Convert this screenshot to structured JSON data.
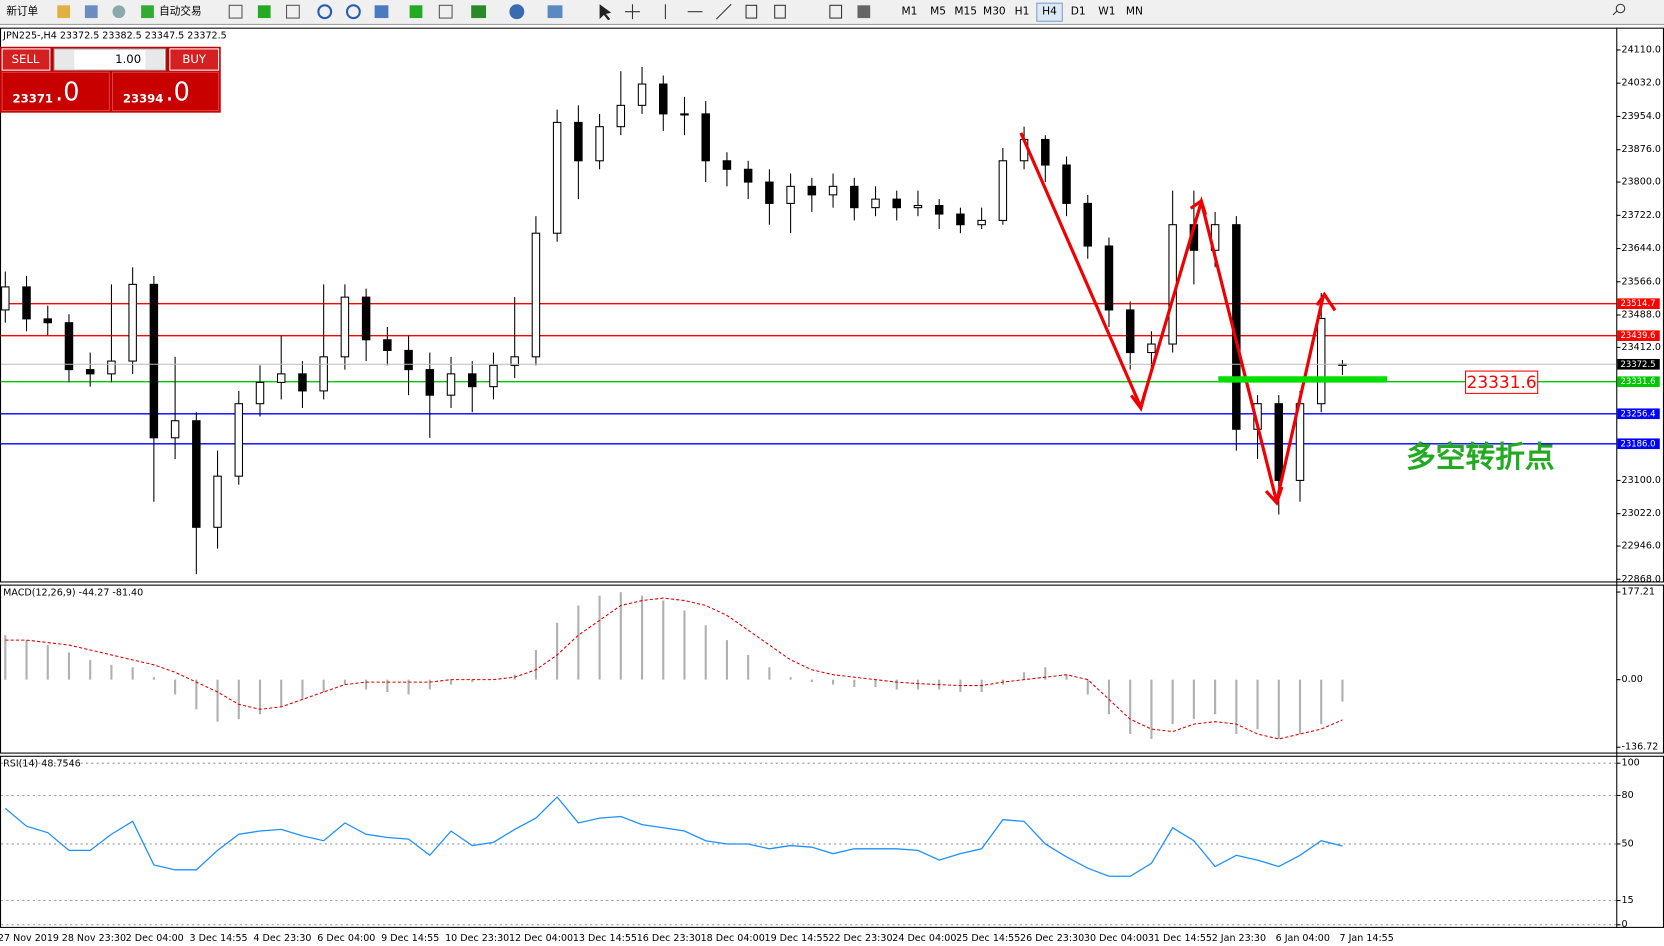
{
  "toolbar": {
    "new_order": "新订单",
    "auto_trading": "自动交易",
    "timeframes": [
      "M1",
      "M5",
      "M15",
      "M30",
      "H1",
      "H4",
      "D1",
      "W1",
      "MN"
    ]
  },
  "trade_panel": {
    "sell": "SELL",
    "buy": "BUY",
    "lots": "1.00",
    "sell_price": "23371",
    "sell_decimal": ".0",
    "buy_price": "23394",
    "buy_decimal": ".0"
  },
  "annotation": "多空转折点",
  "chart_data": [
    {
      "type": "candlestick",
      "title": "JPN225-,H4 23372.5 23382.5 23347.5 23372.5",
      "open": [
        23500,
        23554,
        23479,
        23470,
        23360,
        23350,
        23380,
        23560,
        23200,
        23240,
        22990,
        23110,
        23280,
        23330,
        23350,
        23310,
        23390,
        23530,
        23430,
        23405,
        23360,
        23300,
        23350,
        23320,
        23370,
        23390,
        23680,
        23940,
        23850,
        23930,
        23980,
        24030,
        23960,
        23960,
        23850,
        23830,
        23800,
        23750,
        23790,
        23770,
        23790,
        23740,
        23760,
        23740,
        23745,
        23725,
        23700,
        23710,
        23850,
        23900,
        23840,
        23750,
        23650,
        23500,
        23400,
        23420,
        23700,
        23640,
        23700,
        23220,
        23280,
        23100,
        23280,
        23372.5
      ],
      "high": [
        23590,
        23580,
        23510,
        23490,
        23400,
        23560,
        23600,
        23580,
        23390,
        23260,
        23170,
        23310,
        23370,
        23440,
        23380,
        23560,
        23560,
        23550,
        23460,
        23440,
        23400,
        23390,
        23380,
        23400,
        23530,
        23720,
        23970,
        23980,
        23960,
        24060,
        24070,
        24050,
        24000,
        23990,
        23870,
        23850,
        23830,
        23820,
        23810,
        23820,
        23810,
        23790,
        23780,
        23780,
        23760,
        23740,
        23740,
        23880,
        23930,
        23910,
        23860,
        23770,
        23670,
        23520,
        23450,
        23780,
        23780,
        23730,
        23720,
        23300,
        23300,
        23310,
        23540,
        23382.5
      ],
      "low": [
        23470,
        23450,
        23440,
        23330,
        23320,
        23330,
        23350,
        23050,
        23150,
        22880,
        22940,
        23090,
        23250,
        23290,
        23270,
        23290,
        23360,
        23380,
        23370,
        23300,
        23200,
        23270,
        23260,
        23290,
        23340,
        23370,
        23660,
        23760,
        23830,
        23910,
        23960,
        23920,
        23910,
        23800,
        23790,
        23760,
        23700,
        23680,
        23730,
        23740,
        23710,
        23720,
        23710,
        23720,
        23690,
        23680,
        23690,
        23700,
        23830,
        23800,
        23720,
        23620,
        23460,
        23360,
        23350,
        23400,
        23560,
        23600,
        23170,
        23150,
        23020,
        23050,
        23260,
        23347.5
      ],
      "close": [
        23554,
        23479,
        23470,
        23360,
        23350,
        23380,
        23560,
        23200,
        23240,
        22990,
        23110,
        23280,
        23330,
        23350,
        23310,
        23390,
        23530,
        23430,
        23405,
        23360,
        23300,
        23350,
        23320,
        23370,
        23390,
        23680,
        23940,
        23850,
        23930,
        23980,
        24030,
        23960,
        23960,
        23850,
        23830,
        23800,
        23750,
        23790,
        23770,
        23790,
        23740,
        23760,
        23740,
        23745,
        23725,
        23700,
        23710,
        23850,
        23900,
        23840,
        23750,
        23650,
        23500,
        23400,
        23420,
        23700,
        23640,
        23700,
        23220,
        23280,
        23100,
        23280,
        23480,
        23372.5
      ],
      "ylim": [
        22868,
        24110
      ],
      "yticks": [
        {
          "value": 24110,
          "label": "24110.0"
        },
        {
          "value": 24032,
          "label": "24032.0"
        },
        {
          "value": 23954,
          "label": "23954.0"
        },
        {
          "value": 23876,
          "label": "23876.0"
        },
        {
          "value": 23800,
          "label": "23800.0"
        },
        {
          "value": 23722,
          "label": "23722.0"
        },
        {
          "value": 23644,
          "label": "23644.0"
        },
        {
          "value": 23566,
          "label": "23566.0"
        },
        {
          "value": 23488,
          "label": "23488.0"
        },
        {
          "value": 23412,
          "label": "23412.0"
        },
        {
          "value": 23100,
          "label": "23100.0"
        },
        {
          "value": 23022,
          "label": "23022.0"
        },
        {
          "value": 22946,
          "label": "22946.0"
        },
        {
          "value": 22868,
          "label": "22868.0"
        }
      ],
      "hlines": [
        {
          "value": 23514.7,
          "color": "#ff0000"
        },
        {
          "value": 23439.6,
          "color": "#ff0000"
        },
        {
          "value": 23331.6,
          "color": "#00c800"
        },
        {
          "value": 23256.4,
          "color": "#0000ff"
        },
        {
          "value": 23186,
          "label": "23186.0",
          "color": "#0000ff"
        }
      ],
      "xticklabels": [
        "27 Nov 2019",
        "28 Nov 23:30",
        "2 Dec 04:00",
        "3 Dec 14:55",
        "4 Dec 23:30",
        "6 Dec 04:00",
        "9 Dec 14:55",
        "10 Dec 23:30",
        "12 Dec 04:00",
        "13 Dec 14:55",
        "16 Dec 23:30",
        "18 Dec 04:00",
        "19 Dec 14:55",
        "22 Dec 23:30",
        "24 Dec 04:00",
        "25 Dec 14:55",
        "26 Dec 23:30",
        "30 Dec 04:00",
        "31 Dec 14:55",
        "2 Jan 23:30",
        "6 Jan 04:00",
        "7 Jan 14:55"
      ]
    },
    {
      "type": "macd",
      "title": "MACD(12,26,9) -44.27 -81.40",
      "histogram": [
        90,
        80,
        70,
        55,
        40,
        30,
        25,
        5,
        -30,
        -60,
        -85,
        -80,
        -70,
        -55,
        -40,
        -25,
        -10,
        -20,
        -25,
        -30,
        -20,
        -10,
        -5,
        0,
        10,
        60,
        115,
        150,
        170,
        177,
        170,
        160,
        140,
        110,
        80,
        50,
        25,
        5,
        -5,
        -10,
        -15,
        -15,
        -20,
        -20,
        -20,
        -25,
        -25,
        -10,
        15,
        25,
        10,
        -30,
        -70,
        -110,
        -120,
        -90,
        -80,
        -70,
        -110,
        -100,
        -120,
        -110,
        -90,
        -44.27
      ],
      "signal": [
        80,
        80,
        75,
        70,
        60,
        50,
        40,
        30,
        15,
        -5,
        -25,
        -50,
        -60,
        -55,
        -40,
        -25,
        -10,
        -5,
        -5,
        -5,
        -5,
        0,
        0,
        0,
        5,
        20,
        50,
        90,
        120,
        150,
        160,
        165,
        160,
        150,
        130,
        100,
        70,
        40,
        20,
        10,
        5,
        0,
        -5,
        -8,
        -10,
        -12,
        -12,
        -5,
        0,
        5,
        10,
        0,
        -40,
        -80,
        -100,
        -105,
        -90,
        -85,
        -90,
        -110,
        -120,
        -110,
        -100,
        -81.4
      ],
      "ylim": [
        -136.72,
        177.21
      ],
      "yticks": [
        177.21,
        {
          "value": 0,
          "label": "0.00"
        },
        -136.72
      ]
    },
    {
      "type": "line",
      "title": "RSI(14) 48.7546",
      "color": "#1e90ff",
      "values": [
        72,
        61,
        57,
        46,
        46,
        56,
        64,
        37,
        34,
        34,
        46,
        56,
        58,
        59,
        55,
        52,
        63,
        56,
        54,
        53,
        43,
        58,
        49,
        51,
        59,
        66,
        79,
        63,
        66,
        67,
        62,
        60,
        58,
        52,
        50,
        50,
        47,
        49,
        48,
        44,
        47,
        47,
        47,
        46,
        40,
        44,
        47,
        65,
        64,
        50,
        42,
        35,
        30,
        30,
        38,
        60,
        52,
        36,
        43,
        40,
        36,
        43,
        52,
        48.7546
      ],
      "ylim": [
        0,
        100
      ],
      "yticks": [
        100,
        80,
        50,
        15,
        0
      ],
      "grid": true
    }
  ]
}
